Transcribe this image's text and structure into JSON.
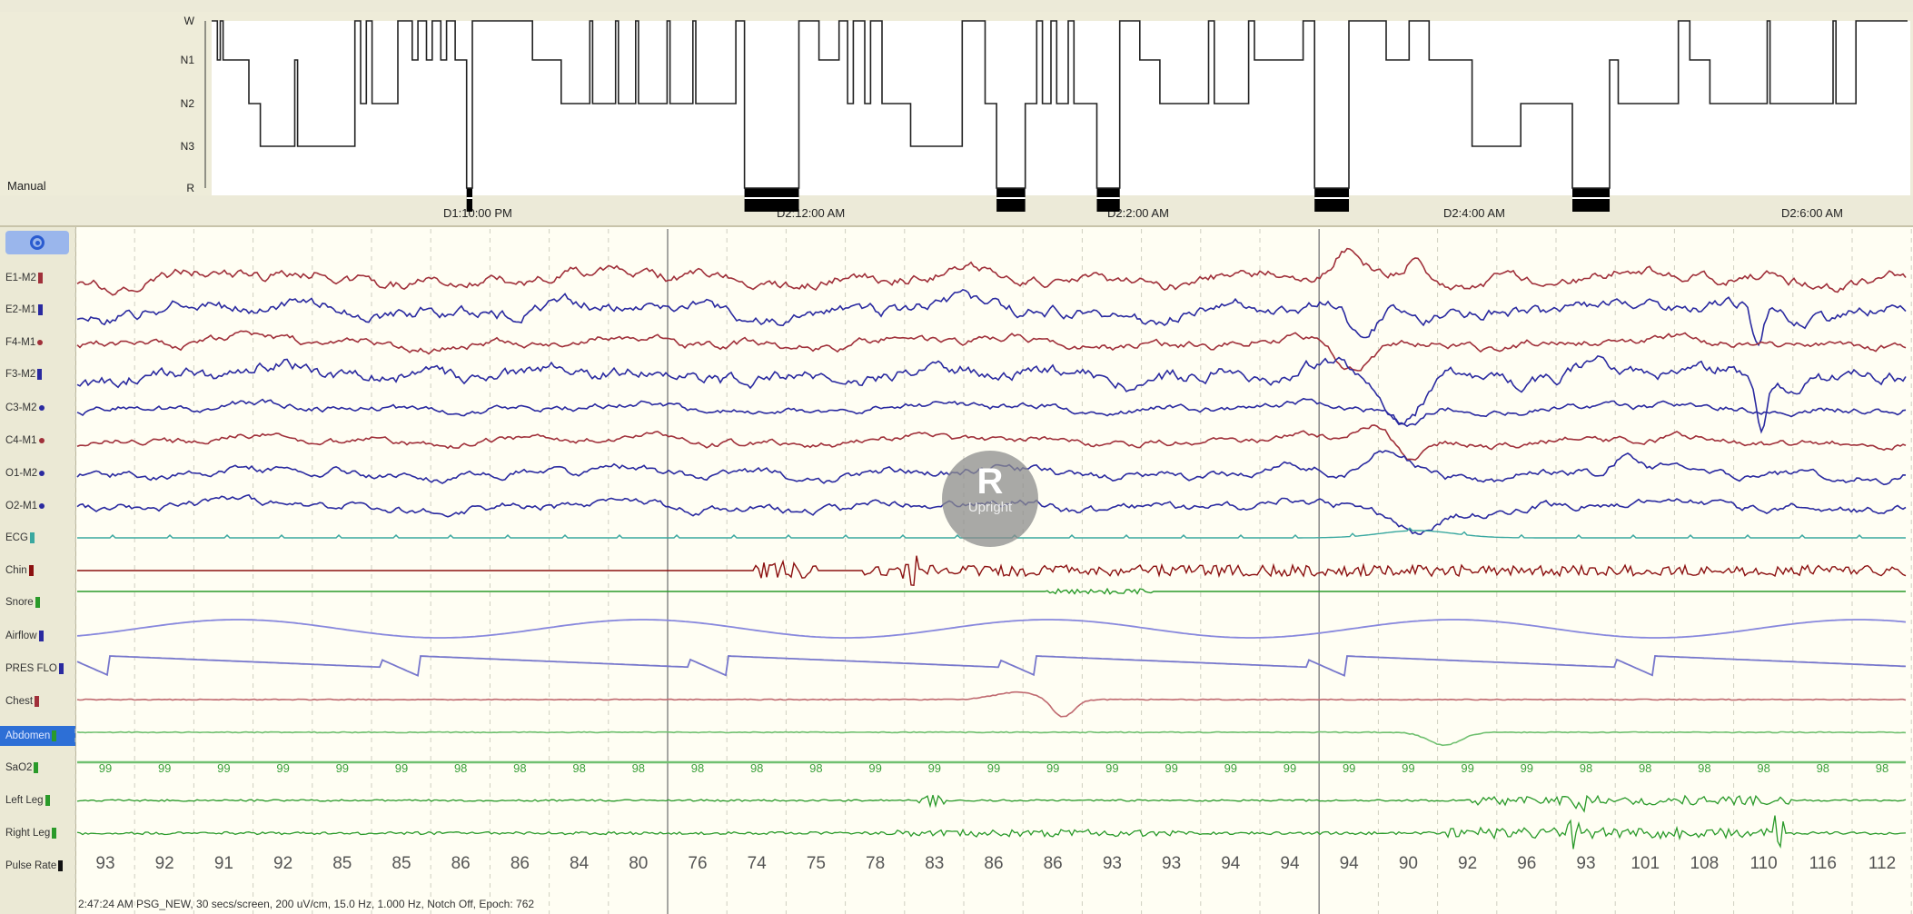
{
  "hypnogram": {
    "label": "Manual",
    "stages": [
      "W",
      "N1",
      "N2",
      "N3",
      "R"
    ],
    "time_labels": [
      "D1:10:00 PM",
      "D2:12:00 AM",
      "D2:2:00 AM",
      "D2:4:00 AM",
      "D2:6:00 AM"
    ],
    "segments_minutes": [
      [
        "W",
        2
      ],
      [
        "N1",
        1
      ],
      [
        "W",
        1
      ],
      [
        "N1",
        2
      ],
      [
        "N1",
        7
      ],
      [
        "N2",
        4
      ],
      [
        "N3",
        12
      ],
      [
        "N1",
        1
      ],
      [
        "N3",
        20
      ],
      [
        "W",
        2
      ],
      [
        "N2",
        2
      ],
      [
        "W",
        2
      ],
      [
        "N2",
        2
      ],
      [
        "N2",
        7
      ],
      [
        "W",
        5
      ],
      [
        "N1",
        2
      ],
      [
        "W",
        3
      ],
      [
        "N1",
        2
      ],
      [
        "W",
        3
      ],
      [
        "N1",
        2
      ],
      [
        "W",
        3
      ],
      [
        "N1",
        4
      ],
      [
        "R",
        2
      ],
      [
        "W",
        21
      ],
      [
        "N1",
        10
      ],
      [
        "N2",
        10
      ],
      [
        "W",
        1
      ],
      [
        "N2",
        8
      ],
      [
        "W",
        1
      ],
      [
        "N2",
        6
      ],
      [
        "W",
        1
      ],
      [
        "N2",
        10
      ],
      [
        "W",
        1
      ],
      [
        "N2",
        8
      ],
      [
        "W",
        1
      ],
      [
        "N2",
        14
      ],
      [
        "W",
        3
      ],
      [
        "R",
        19
      ],
      [
        "W",
        7
      ],
      [
        "N1",
        7
      ],
      [
        "W",
        3
      ],
      [
        "N2",
        2
      ],
      [
        "W",
        4
      ],
      [
        "N2",
        2
      ],
      [
        "W",
        4
      ],
      [
        "N2",
        10
      ],
      [
        "N3",
        18
      ],
      [
        "W",
        8
      ],
      [
        "N2",
        4
      ],
      [
        "R",
        10
      ],
      [
        "N2",
        4
      ],
      [
        "W",
        2
      ],
      [
        "N2",
        3
      ],
      [
        "W",
        2
      ],
      [
        "N2",
        4
      ],
      [
        "W",
        2
      ],
      [
        "N2",
        5
      ],
      [
        "N2",
        3
      ],
      [
        "R",
        8
      ],
      [
        "W",
        7
      ],
      [
        "N1",
        7
      ],
      [
        "N2",
        17
      ],
      [
        "W",
        2
      ],
      [
        "N2",
        12
      ],
      [
        "W",
        2
      ],
      [
        "N1",
        17
      ],
      [
        "W",
        4
      ],
      [
        "R",
        12
      ],
      [
        "W",
        13
      ],
      [
        "N1",
        8
      ],
      [
        "W",
        7
      ],
      [
        "N1",
        15
      ],
      [
        "N3",
        17
      ],
      [
        "N2",
        18
      ],
      [
        "R",
        13
      ],
      [
        "N1",
        3
      ],
      [
        "N2",
        21
      ],
      [
        "W",
        4
      ],
      [
        "N1",
        7
      ],
      [
        "N2",
        20
      ],
      [
        "W",
        1
      ],
      [
        "N2",
        22
      ],
      [
        "W",
        1
      ],
      [
        "N2",
        7
      ],
      [
        "W",
        18
      ]
    ]
  },
  "toolbar": {
    "eye_button": "view-toggle"
  },
  "channels": [
    {
      "name": "E1-M2",
      "color": "#a0303a",
      "marker": "bar"
    },
    {
      "name": "E2-M1",
      "color": "#2a2aa0",
      "marker": "bar"
    },
    {
      "name": "F4-M1",
      "color": "#a0303a",
      "marker": "dot"
    },
    {
      "name": "F3-M2",
      "color": "#2a2aa0",
      "marker": "bar"
    },
    {
      "name": "C3-M2",
      "color": "#2a2aa0",
      "marker": "dot"
    },
    {
      "name": "C4-M1",
      "color": "#a0303a",
      "marker": "dot"
    },
    {
      "name": "O1-M2",
      "color": "#2a2aa0",
      "marker": "dot"
    },
    {
      "name": "O2-M1",
      "color": "#2a2aa0",
      "marker": "dot"
    },
    {
      "name": "ECG",
      "color": "#3aa8a0",
      "marker": "bar"
    },
    {
      "name": "Chin",
      "color": "#8b1010",
      "marker": "bar"
    },
    {
      "name": "Snore",
      "color": "#2a9a2a",
      "marker": "bar"
    },
    {
      "name": "Airflow",
      "color": "#2a2aa0",
      "marker": "bar"
    },
    {
      "name": "PRES FLO",
      "color": "#2a2aa0",
      "marker": "bar"
    },
    {
      "name": "Chest",
      "color": "#a0303a",
      "marker": "bar"
    },
    {
      "name": "Abdomen",
      "color": "#2a9a2a",
      "marker": "bar",
      "selected": true
    },
    {
      "name": "SaO2",
      "color": "#2a9a2a",
      "marker": "bar"
    },
    {
      "name": "Left Leg",
      "color": "#2a9a2a",
      "marker": "bar"
    },
    {
      "name": "Right Leg",
      "color": "#2a9a2a",
      "marker": "bar"
    },
    {
      "name": "Pulse Rate",
      "color": "#111111",
      "marker": "bar"
    }
  ],
  "sao2_values": [
    "99",
    "99",
    "99",
    "99",
    "99",
    "99",
    "98",
    "98",
    "98",
    "98",
    "98",
    "98",
    "98",
    "99",
    "99",
    "99",
    "99",
    "99",
    "99",
    "99",
    "99",
    "99",
    "99",
    "99",
    "99",
    "98",
    "98",
    "98",
    "98",
    "98",
    "98"
  ],
  "pulse_values": [
    "93",
    "92",
    "91",
    "92",
    "85",
    "85",
    "86",
    "86",
    "84",
    "80",
    "76",
    "74",
    "75",
    "78",
    "83",
    "86",
    "86",
    "93",
    "93",
    "94",
    "94",
    "94",
    "90",
    "92",
    "96",
    "93",
    "101",
    "108",
    "110",
    "116",
    "112"
  ],
  "watermark": {
    "letter": "R",
    "text": "Upright"
  },
  "status": "2:47:24 AM PSG_NEW, 30 secs/screen, 200 uV/cm, 15.0 Hz, 1.000 Hz, Notch Off, Epoch: 762"
}
